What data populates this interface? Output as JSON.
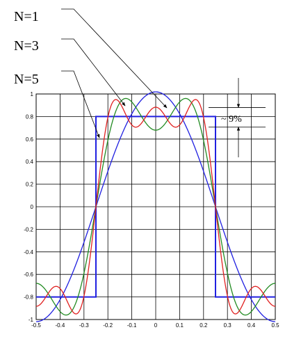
{
  "chart_data": {
    "type": "line",
    "xlim": [
      -0.5,
      0.5
    ],
    "ylim": [
      -1,
      1
    ],
    "grid": true,
    "x_ticks": [
      "-0.5",
      "-0.4",
      "-0.3",
      "-0.2",
      "-0.1",
      "0",
      "0.1",
      "0.2",
      "0.3",
      "0.4",
      "0.5"
    ],
    "y_ticks": [
      "1",
      "0.8",
      "0.6",
      "0.4",
      "0.2",
      "0",
      "-0.2",
      "-0.4",
      "-0.6",
      "-0.8",
      "-1"
    ],
    "square_wave": {
      "amplitude": 0.8,
      "high_from": -0.25,
      "high_to": 0.25,
      "color": "#2020e0"
    },
    "series": [
      {
        "label": "N=1",
        "harmonics": 1,
        "color": "#2020e0"
      },
      {
        "label": "N=3",
        "harmonics": 3,
        "color": "#228b22"
      },
      {
        "label": "N=5",
        "harmonics": 5,
        "color": "#e02020"
      }
    ],
    "overshoot_annotation": "~ 9%"
  }
}
